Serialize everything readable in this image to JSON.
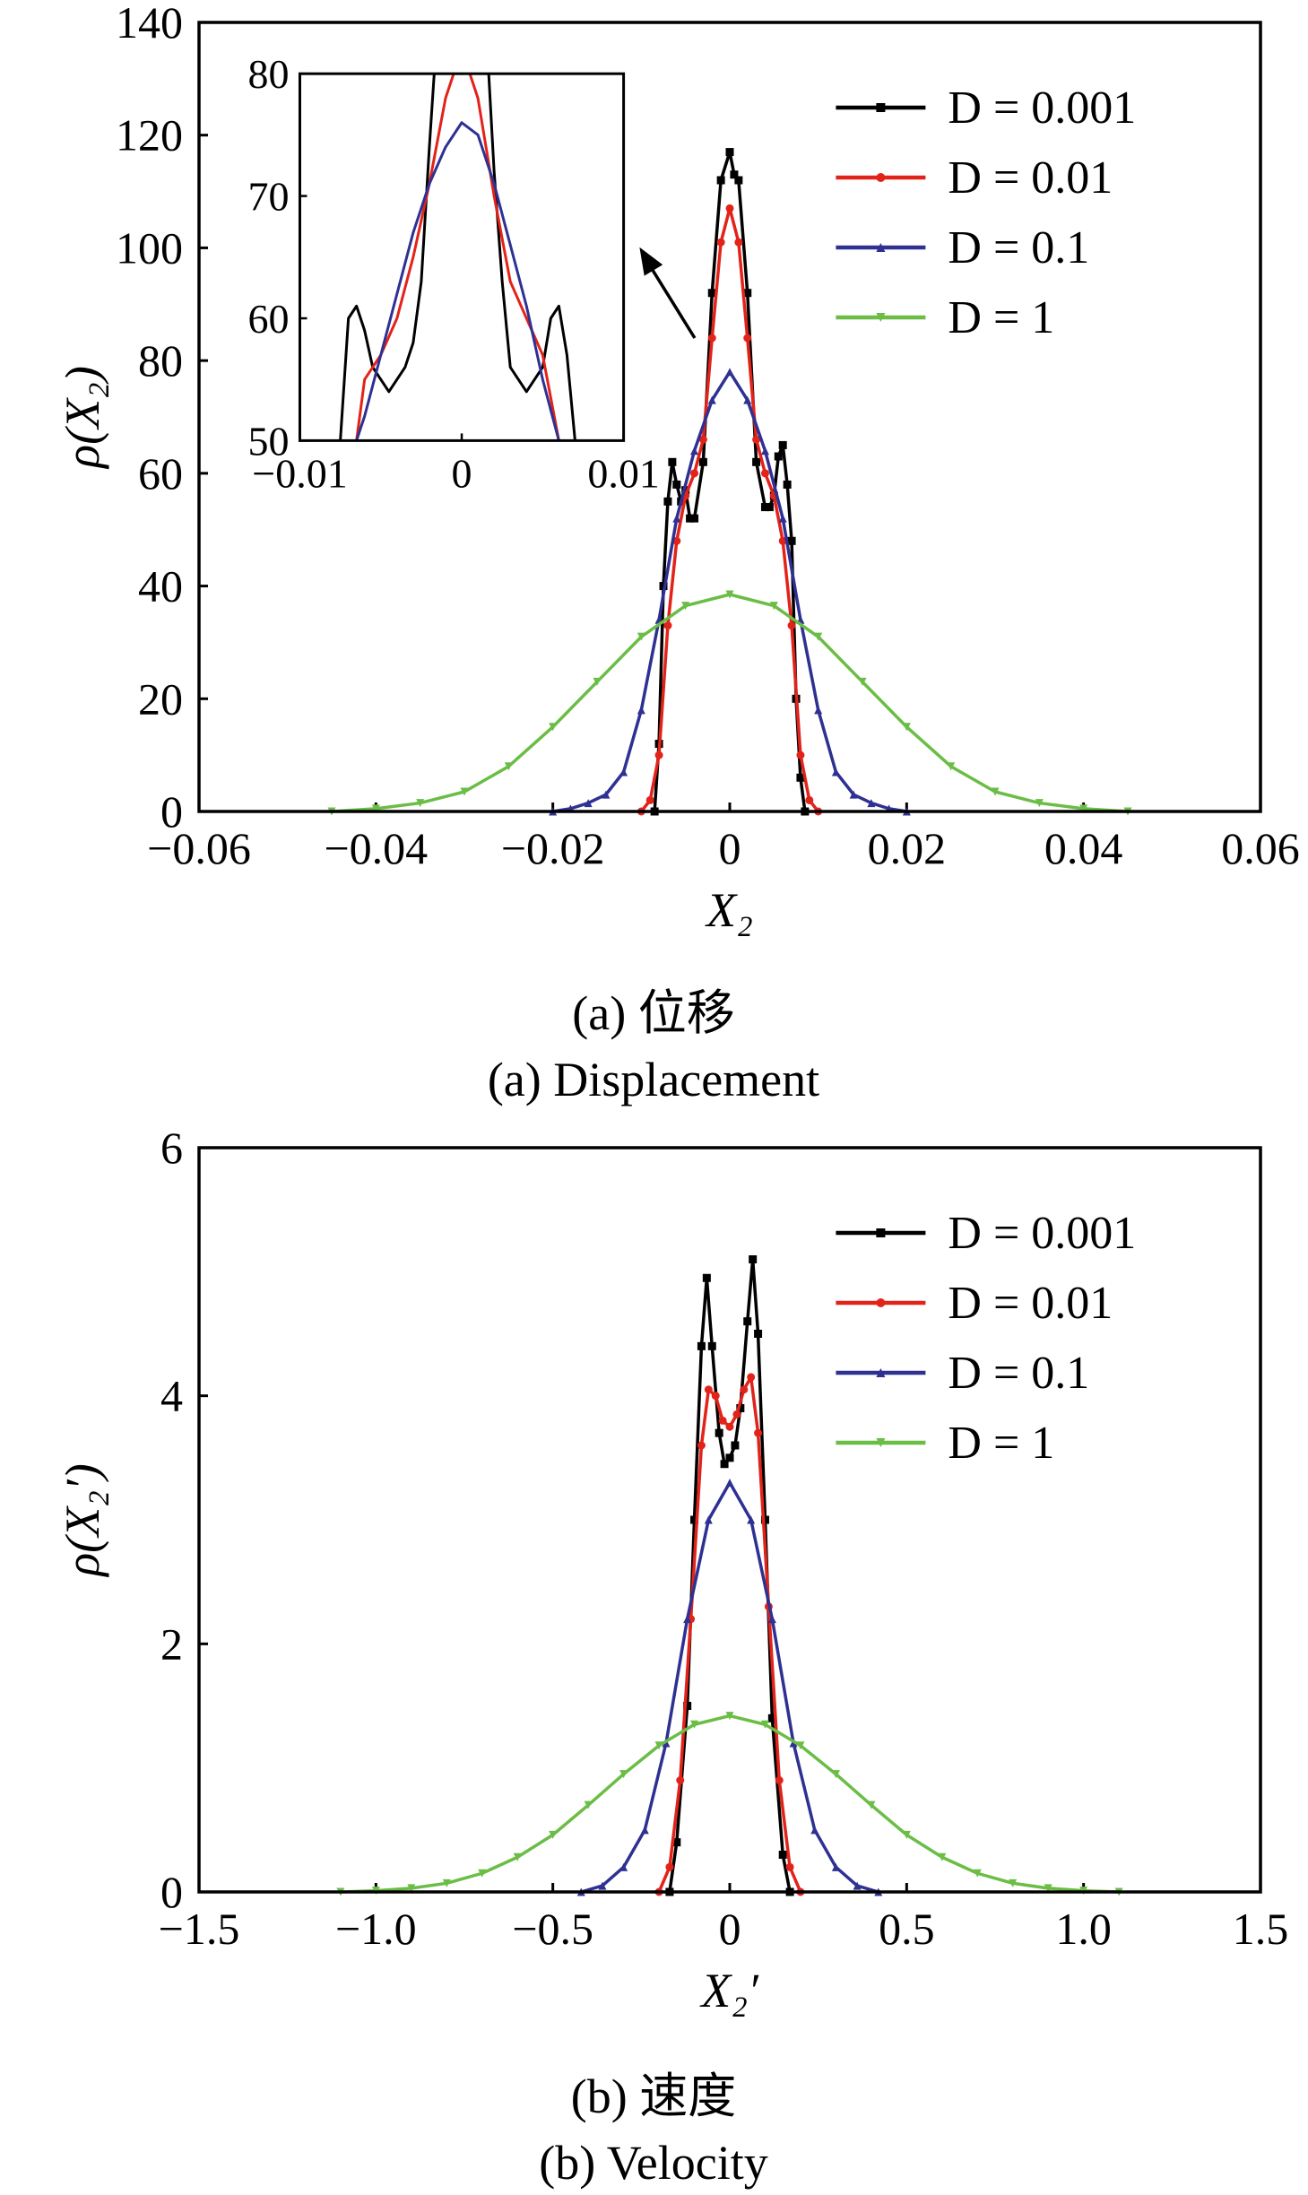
{
  "chart_data": [
    {
      "type": "line",
      "title": "",
      "caption_zh": "(a) 位移",
      "caption_en": "(a) Displacement",
      "xlabel": "X₂",
      "ylabel": "ρ(X₂)",
      "xlim": [
        -0.06,
        0.06
      ],
      "ylim": [
        0,
        140
      ],
      "xticks": [
        "−0.06",
        "−0.04",
        "−0.02",
        "0",
        "0.02",
        "0.04",
        "0.06"
      ],
      "yticks": [
        "0",
        "20",
        "40",
        "60",
        "80",
        "100",
        "120",
        "140"
      ],
      "legend_position": "top-right",
      "series": [
        {
          "name": "D = 0.001",
          "color": "#000000",
          "marker": "square",
          "x": [
            -0.0085,
            -0.008,
            -0.0075,
            -0.007,
            -0.0065,
            -0.006,
            -0.0055,
            -0.005,
            -0.0045,
            -0.004,
            -0.003,
            -0.002,
            -0.001,
            0,
            0.0005,
            0.001,
            0.002,
            0.003,
            0.004,
            0.0045,
            0.005,
            0.0055,
            0.006,
            0.0065,
            0.007,
            0.0075,
            0.008,
            0.0085
          ],
          "y": [
            0,
            12,
            40,
            55,
            62,
            58,
            55,
            57,
            52,
            52,
            62,
            92,
            112,
            117,
            113,
            112,
            92,
            62,
            54,
            54,
            56,
            63,
            65,
            58,
            48,
            20,
            6,
            0
          ]
        },
        {
          "name": "D = 0.01",
          "color": "#e2231a",
          "marker": "circle",
          "x": [
            -0.01,
            -0.009,
            -0.008,
            -0.007,
            -0.006,
            -0.005,
            -0.004,
            -0.003,
            -0.002,
            -0.001,
            0,
            0.001,
            0.002,
            0.003,
            0.004,
            0.005,
            0.006,
            0.007,
            0.008,
            0.009,
            0.01
          ],
          "y": [
            0,
            2,
            10,
            33,
            48,
            56,
            60,
            66,
            84,
            101,
            107,
            101,
            84,
            66,
            60,
            56,
            48,
            33,
            10,
            2,
            0
          ]
        },
        {
          "name": "D = 0.1",
          "color": "#2e3192",
          "marker": "triangle-up",
          "x": [
            -0.02,
            -0.018,
            -0.016,
            -0.014,
            -0.012,
            -0.01,
            -0.008,
            -0.006,
            -0.004,
            -0.002,
            0,
            0.002,
            0.004,
            0.006,
            0.008,
            0.01,
            0.012,
            0.014,
            0.016,
            0.018,
            0.02
          ],
          "y": [
            0,
            0.5,
            1.5,
            3,
            7,
            18,
            34,
            52,
            64,
            73,
            78,
            73,
            64,
            52,
            34,
            18,
            7,
            3,
            1.5,
            0.5,
            0
          ]
        },
        {
          "name": "D = 1",
          "color": "#6abd45",
          "marker": "triangle-down",
          "x": [
            -0.045,
            -0.04,
            -0.035,
            -0.03,
            -0.025,
            -0.02,
            -0.015,
            -0.01,
            -0.005,
            0,
            0.005,
            0.01,
            0.015,
            0.02,
            0.025,
            0.03,
            0.035,
            0.04,
            0.045
          ],
          "y": [
            0,
            0.5,
            1.5,
            3.5,
            8,
            15,
            23,
            31,
            36.5,
            38.5,
            36.5,
            31,
            23,
            15,
            8,
            3.5,
            1.5,
            0.5,
            0
          ]
        }
      ],
      "inset": {
        "xlim": [
          -0.01,
          0.01
        ],
        "ylim": [
          50,
          80
        ],
        "xticks": [
          "−0.01",
          "0",
          "0.01"
        ],
        "yticks": [
          "50",
          "60",
          "70",
          "80"
        ],
        "series": [
          {
            "name": "D = 0.001",
            "color": "#000000",
            "x": [
              -0.0075,
              -0.007,
              -0.0065,
              -0.006,
              -0.0055,
              -0.005,
              -0.0045,
              -0.004,
              -0.0035,
              -0.003,
              -0.0025,
              -0.002,
              -0.0015,
              -0.001,
              -0.0005,
              0,
              0.0005,
              0.001,
              0.0015,
              0.002,
              0.0025,
              0.003,
              0.0035,
              0.004,
              0.0045,
              0.005,
              0.0055,
              0.006,
              0.0065,
              0.007
            ],
            "y": [
              50,
              60,
              61,
              59,
              56,
              55,
              54,
              55,
              56,
              58,
              63,
              74,
              84,
              90,
              86,
              80,
              86,
              90,
              84,
              72,
              63,
              56,
              55,
              54,
              55,
              56,
              60,
              61,
              57,
              50
            ]
          },
          {
            "name": "D = 0.01",
            "color": "#e2231a",
            "x": [
              -0.0065,
              -0.006,
              -0.005,
              -0.004,
              -0.003,
              -0.002,
              -0.001,
              0,
              0.001,
              0.002,
              0.003,
              0.004,
              0.005,
              0.006
            ],
            "y": [
              50,
              55,
              57,
              60,
              65,
              71,
              78,
              82,
              78,
              70,
              63,
              60,
              57,
              50
            ]
          },
          {
            "name": "D = 0.1",
            "color": "#2e3192",
            "x": [
              -0.0065,
              -0.006,
              -0.005,
              -0.004,
              -0.003,
              -0.002,
              -0.001,
              0,
              0.001,
              0.002,
              0.003,
              0.004,
              0.005,
              0.006
            ],
            "y": [
              50,
              52,
              57,
              62,
              67,
              71,
              74,
              76,
              75,
              71,
              66,
              61,
              55,
              50
            ]
          }
        ]
      }
    },
    {
      "type": "line",
      "title": "",
      "caption_zh": "(b) 速度",
      "caption_en": "(b) Velocity",
      "xlabel": "X₂′",
      "ylabel": "ρ(X₂′)",
      "xlim": [
        -1.5,
        1.5
      ],
      "ylim": [
        0,
        6
      ],
      "xticks": [
        "−1.5",
        "−1.0",
        "−0.5",
        "0",
        "0.5",
        "1.0",
        "1.5"
      ],
      "yticks": [
        "0",
        "2",
        "4",
        "6"
      ],
      "legend_position": "top-right",
      "series": [
        {
          "name": "D = 0.001",
          "color": "#000000",
          "marker": "square",
          "x": [
            -0.17,
            -0.15,
            -0.12,
            -0.1,
            -0.08,
            -0.065,
            -0.05,
            -0.03,
            -0.015,
            0,
            0.015,
            0.03,
            0.05,
            0.065,
            0.08,
            0.1,
            0.12,
            0.15,
            0.17
          ],
          "y": [
            0,
            0.4,
            1.5,
            3.0,
            4.4,
            4.95,
            4.4,
            3.7,
            3.45,
            3.5,
            3.6,
            3.9,
            4.6,
            5.1,
            4.5,
            3.0,
            1.4,
            0.3,
            0
          ],
          "y_note": ""
        },
        {
          "name": "D = 0.01",
          "color": "#e2231a",
          "marker": "circle",
          "x": [
            -0.2,
            -0.17,
            -0.14,
            -0.11,
            -0.08,
            -0.06,
            -0.04,
            -0.02,
            0,
            0.02,
            0.04,
            0.06,
            0.08,
            0.11,
            0.14,
            0.17,
            0.2
          ],
          "y": [
            0,
            0.2,
            0.9,
            2.2,
            3.6,
            4.05,
            4.0,
            3.8,
            3.75,
            3.85,
            4.05,
            4.15,
            3.7,
            2.3,
            0.9,
            0.2,
            0
          ]
        },
        {
          "name": "D = 0.1",
          "color": "#2e3192",
          "marker": "triangle-up",
          "x": [
            -0.42,
            -0.36,
            -0.3,
            -0.24,
            -0.18,
            -0.12,
            -0.06,
            0,
            0.06,
            0.12,
            0.18,
            0.24,
            0.3,
            0.36,
            0.42
          ],
          "y": [
            0,
            0.05,
            0.2,
            0.5,
            1.2,
            2.2,
            3.0,
            3.3,
            3.0,
            2.2,
            1.2,
            0.5,
            0.2,
            0.05,
            0
          ]
        },
        {
          "name": "D = 1",
          "color": "#6abd45",
          "marker": "triangle-down",
          "x": [
            -1.1,
            -1.0,
            -0.9,
            -0.8,
            -0.7,
            -0.6,
            -0.5,
            -0.4,
            -0.3,
            -0.2,
            -0.1,
            0,
            0.1,
            0.2,
            0.3,
            0.4,
            0.5,
            0.6,
            0.7,
            0.8,
            0.9,
            1.0,
            1.1
          ],
          "y": [
            0,
            0.01,
            0.03,
            0.07,
            0.15,
            0.28,
            0.46,
            0.7,
            0.95,
            1.18,
            1.35,
            1.42,
            1.35,
            1.18,
            0.95,
            0.7,
            0.46,
            0.28,
            0.15,
            0.07,
            0.03,
            0.01,
            0
          ]
        }
      ]
    }
  ]
}
